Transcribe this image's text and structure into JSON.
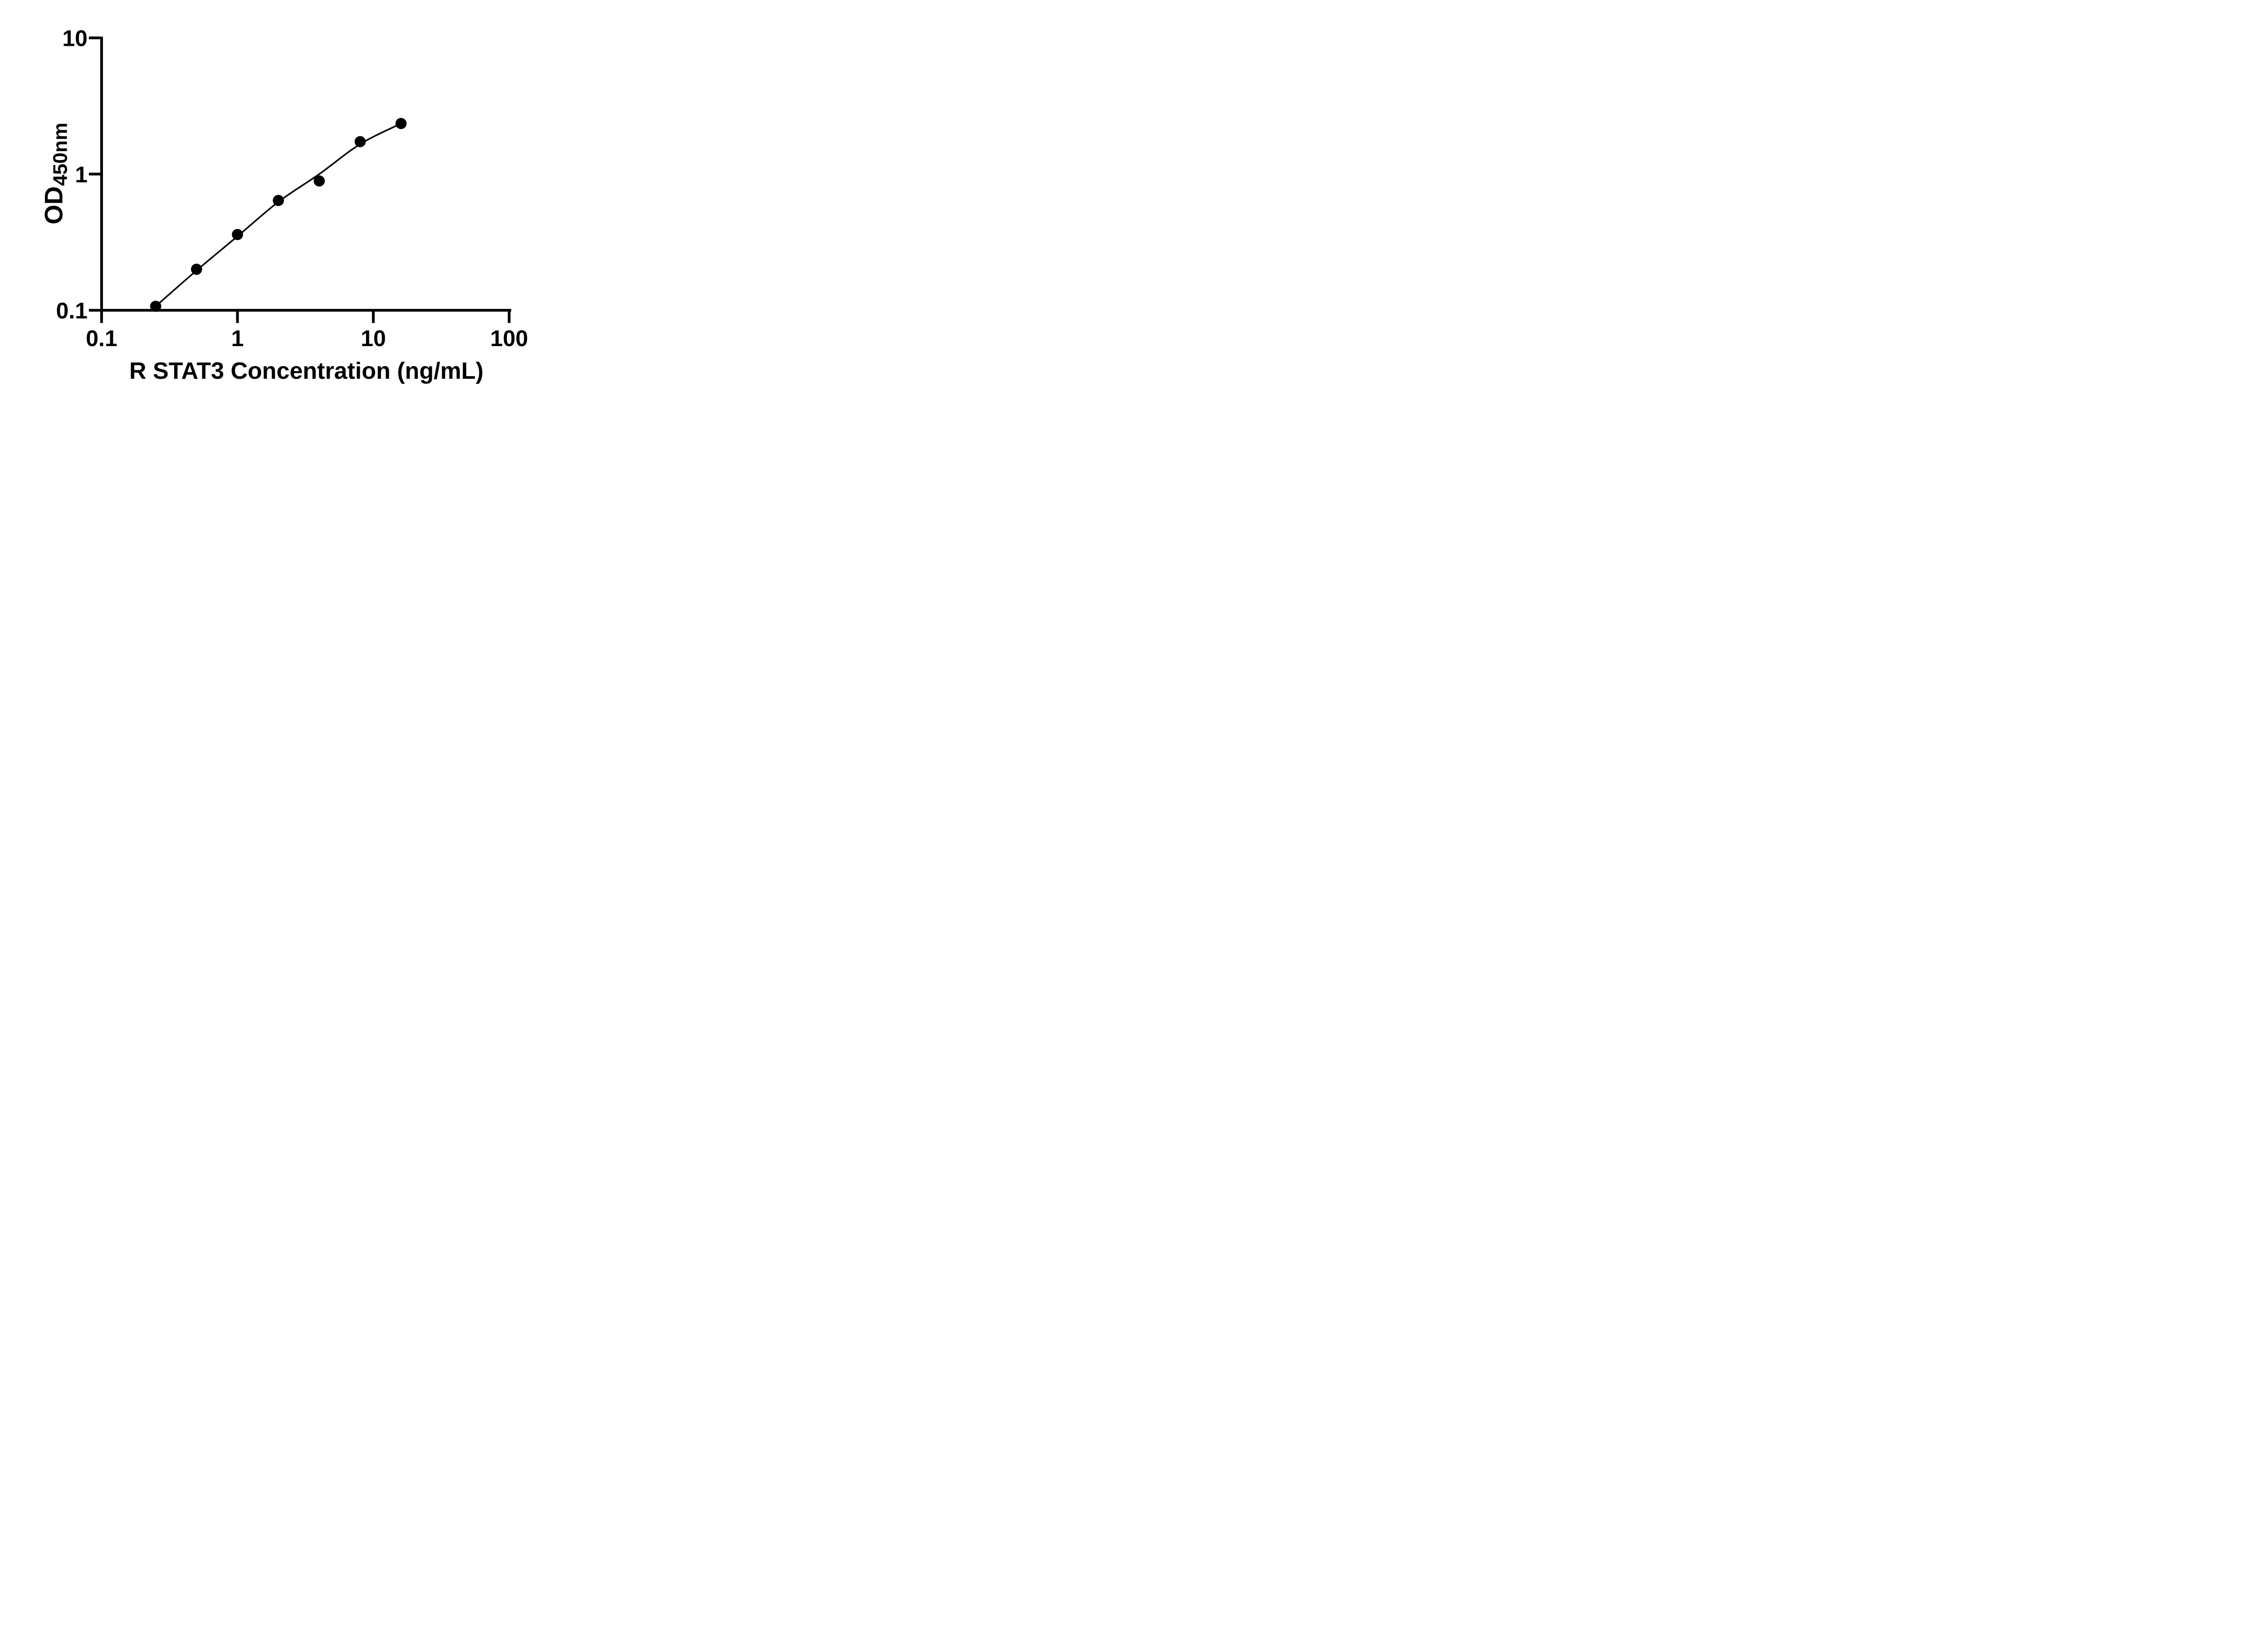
{
  "figure": {
    "background_color": "#ffffff",
    "ink_color": "#000000"
  },
  "chart_data": {
    "type": "scatter",
    "title": "",
    "xlabel": "R STAT3 Concentration (ng/mL)",
    "ylabel_base": "OD",
    "ylabel_subscript": "450nm",
    "x_scale": "log",
    "y_scale": "log",
    "xlim": [
      0.1,
      100
    ],
    "ylim": [
      0.1,
      10
    ],
    "x_tick_values": [
      0.1,
      1,
      10,
      100
    ],
    "x_tick_labels": [
      "0.1",
      "1",
      "10",
      "100"
    ],
    "y_tick_values": [
      0.1,
      1,
      10
    ],
    "y_tick_labels": [
      "0.1",
      "1",
      "10"
    ],
    "grid": false,
    "legend": false,
    "marker": "filled-circle",
    "marker_color": "#000000",
    "line_color": "#000000",
    "series": [
      {
        "name": "standards",
        "type": "scatter",
        "x": [
          0.25,
          0.5,
          1,
          2,
          4,
          8,
          16
        ],
        "y": [
          0.107,
          0.2,
          0.36,
          0.64,
          0.89,
          1.73,
          2.35
        ]
      },
      {
        "name": "fitted-curve",
        "type": "line",
        "x": [
          0.25,
          0.5,
          1,
          2,
          4,
          8,
          16
        ],
        "y": [
          0.107,
          0.196,
          0.349,
          0.625,
          1.0,
          1.66,
          2.35
        ]
      }
    ]
  }
}
